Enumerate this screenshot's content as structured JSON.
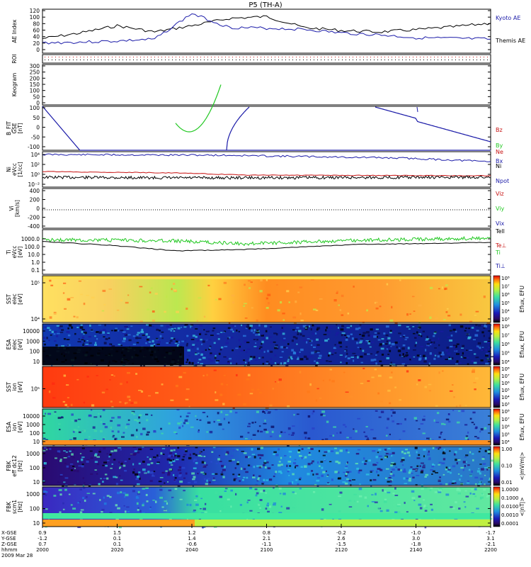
{
  "title": "P5 (TH-A)",
  "colors": {
    "kyoto": "#1a1aa8",
    "themis": "#000000",
    "red": "#c81414",
    "green": "#22c822",
    "blue": "#1a1aa8"
  },
  "time_axis": {
    "ticks": [
      "2000",
      "2020",
      "2040",
      "2100",
      "2120",
      "2140",
      "2200"
    ],
    "row_labels": [
      "X-GSE",
      "Y-GSE",
      "Z-GSE",
      "hhmm",
      "2009 Mar 28"
    ],
    "x_gse": [
      "0.9",
      "1.5",
      "1.2",
      "0.8",
      "-0.2",
      "-1.0",
      "-1.7"
    ],
    "y_gse": [
      "-1.2",
      "0.1",
      "1.4",
      "2.1",
      "2.6",
      "3.0",
      "3.1"
    ],
    "z_gse": [
      "0.7",
      "0.1",
      "-0.6",
      "-1.1",
      "-1.5",
      "-1.8",
      "-2.1"
    ]
  },
  "panels": {
    "ae": {
      "ylabel": "AE Index",
      "yticks": [
        "120",
        "100",
        "80",
        "60",
        "40",
        "20",
        "0"
      ],
      "ylim": [
        0,
        120
      ],
      "legend": [
        "Kyoto AE",
        "Themis AE"
      ]
    },
    "roi": {
      "ylabel": "ROI"
    },
    "keogram": {
      "ylabel": "Keogram",
      "yticks": [
        "300",
        "250",
        "200",
        "150",
        "100",
        "50",
        "0"
      ]
    },
    "bfit": {
      "ylabel": [
        "B_FIT",
        "GSE",
        "[nT]"
      ],
      "yticks": [
        "100",
        "50",
        "0",
        "-50",
        "-100"
      ],
      "legend": [
        "Bz",
        "By",
        "Bx"
      ]
    },
    "ni": {
      "ylabel": [
        "Ni",
        "eVcc",
        "[1/cc]"
      ],
      "yticks": [
        "10⁴",
        "10²",
        "10⁰",
        "10⁻²"
      ],
      "legend": [
        "Ne",
        "Ni",
        "Npot"
      ]
    },
    "vi": {
      "ylabel": [
        "Vi",
        "[km/s]"
      ],
      "yticks": [
        "400",
        "200",
        "0",
        "-200",
        "-400"
      ],
      "legend": [
        "Viz",
        "Viy",
        "Vix"
      ]
    },
    "ti": {
      "ylabel": [
        "Ti",
        "eVcc",
        "[eV]"
      ],
      "yticks": [
        "1000.0",
        "100.0",
        "10.0",
        "1.0",
        "0.1"
      ],
      "legend": [
        "Tell",
        "Te⊥",
        "Ti",
        "Ti⊥"
      ]
    },
    "sst_e": {
      "ylabel": [
        "SST",
        "elec",
        "[eV]"
      ],
      "yticks": [
        "10⁵",
        "10⁴"
      ]
    },
    "esa_e": {
      "ylabel": [
        "ESA",
        "elec",
        "[eV]"
      ],
      "yticks": [
        "10000",
        "1000",
        "100",
        "10"
      ]
    },
    "sst_i": {
      "ylabel": [
        "SST",
        "ion",
        "[eV]"
      ],
      "yticks": [
        "10⁵"
      ]
    },
    "esa_i": {
      "ylabel": [
        "ESA",
        "ion",
        "[eV]"
      ],
      "yticks": [
        "10000",
        "1000",
        "100",
        "10"
      ]
    },
    "fbk_e": {
      "ylabel": [
        "FBK",
        "eff dc12",
        "[Hz]"
      ],
      "yticks": [
        "1000",
        "100",
        "10"
      ]
    },
    "fbk_b": {
      "ylabel": [
        "FBK",
        "scm1",
        "[Hz]"
      ],
      "yticks": [
        "1000",
        "100",
        "10"
      ]
    }
  },
  "colorbars": {
    "sst_e": {
      "label": "Eflux, EFU",
      "ticks": [
        "10⁸",
        "10⁷",
        "10⁶",
        "10⁵",
        "10⁴",
        "10³"
      ]
    },
    "esa_e": {
      "label": "Eflux, EFU",
      "ticks": [
        "10⁸",
        "10⁷",
        "10⁶",
        "10⁵",
        "10⁴"
      ]
    },
    "sst_i": {
      "label": "Eflux, EFU",
      "ticks": [
        "10⁸",
        "10⁷",
        "10⁶",
        "10⁵",
        "10⁴",
        "10³"
      ]
    },
    "esa_i": {
      "label": "Eflux, EFU",
      "ticks": [
        "10⁸",
        "10⁷",
        "10⁶",
        "10⁵",
        "10⁴"
      ]
    },
    "fbk_e": {
      "label": "<|mV/m|>",
      "ticks": [
        "1.00",
        "0.10",
        "0.01"
      ]
    },
    "fbk_b": {
      "label": "<|nT|>",
      "ticks": [
        "1.0000",
        "0.1000",
        "0.0100",
        "0.0010",
        "0.0001"
      ]
    }
  },
  "chart_data": {
    "type": "line",
    "title": "P5 (TH-A)",
    "x": [
      "2000",
      "2010",
      "2020",
      "2030",
      "2040",
      "2050",
      "2100",
      "2110",
      "2120",
      "2130",
      "2140",
      "2150",
      "2200"
    ],
    "xlabel": "hhmm",
    "series": [
      {
        "name": "Kyoto AE",
        "values": [
          28,
          30,
          33,
          38,
          108,
          70,
          68,
          65,
          55,
          50,
          42,
          40,
          38
        ]
      },
      {
        "name": "Themis AE",
        "values": [
          40,
          55,
          75,
          58,
          75,
          95,
          100,
          70,
          62,
          58,
          64,
          72,
          82
        ]
      }
    ],
    "ylabel": "AE Index",
    "ylim": [
      0,
      120
    ],
    "grid": false,
    "legend": "right"
  }
}
